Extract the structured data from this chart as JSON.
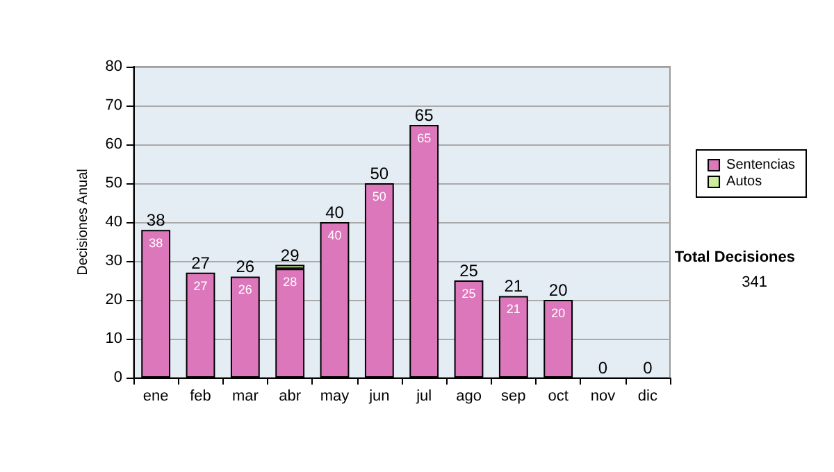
{
  "chart_data": {
    "type": "bar",
    "stacked": true,
    "ylabel": "Decisiones Anual",
    "categories": [
      "ene",
      "feb",
      "mar",
      "abr",
      "may",
      "jun",
      "jul",
      "ago",
      "sep",
      "oct",
      "nov",
      "dic"
    ],
    "series": [
      {
        "name": "Sentencias",
        "color": "#dd77bb",
        "values": [
          38,
          27,
          26,
          28,
          40,
          50,
          65,
          25,
          21,
          20,
          0,
          0
        ],
        "value_labels": [
          "38",
          "27",
          "26",
          "28",
          "40",
          "50",
          "65",
          "25",
          "21",
          "20",
          null,
          null
        ]
      },
      {
        "name": "Autos",
        "color": "#ccee99",
        "values": [
          0,
          0,
          0,
          1,
          0,
          0,
          0,
          0,
          0,
          0,
          0,
          0
        ]
      }
    ],
    "totals": [
      "38",
      "27",
      "26",
      "29",
      "40",
      "50",
      "65",
      "25",
      "21",
      "20",
      "0",
      "0"
    ],
    "ylim": [
      0,
      80
    ],
    "yticks": [
      0,
      10,
      20,
      30,
      40,
      50,
      60,
      70,
      80
    ],
    "grid": "y",
    "legend": "right",
    "annotations": [
      "Total Decisiones",
      "341"
    ]
  }
}
